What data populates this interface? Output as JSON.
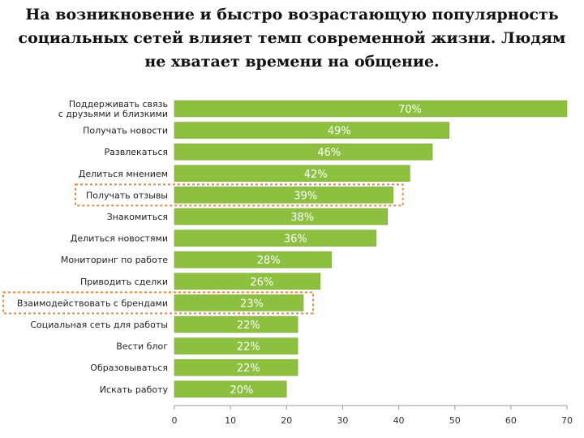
{
  "title": {
    "line1": "На возникновение и быстро возрастающую популярность",
    "line2": "социальных  сетей влияет темп современной жизни. Людям",
    "line3": "не хватает времени на общение."
  },
  "colors": {
    "bar": "#8DC03F",
    "bar_stroke": "#6f9c2c",
    "highlight": "#E8883A",
    "axis": "#999999"
  },
  "chart_data": {
    "type": "bar",
    "orientation": "horizontal",
    "categories": [
      "Поддерживать связь с друзьями и близкими",
      "Получать новости",
      "Развлекаться",
      "Делиться мнением",
      "Получать отзывы",
      "Знакомиться",
      "Делиться новостями",
      "Мониторинг по работе",
      "Приводить сделки",
      "Взаимодействовать с брендами",
      "Социальная сеть для работы",
      "Вести блог",
      "Образовываться",
      "Искать работу"
    ],
    "values": [
      70,
      49,
      46,
      42,
      39,
      38,
      36,
      28,
      26,
      23,
      22,
      22,
      22,
      20
    ],
    "value_labels": [
      "70%",
      "49%",
      "46%",
      "42%",
      "39%",
      "38%",
      "36%",
      "28%",
      "26%",
      "23%",
      "22%",
      "22%",
      "22%",
      "20%"
    ],
    "highlighted": [
      "Получать отзывы",
      "Взаимодействовать с брендами"
    ],
    "xticks": [
      0,
      10,
      20,
      30,
      40,
      50,
      60,
      70
    ],
    "xlim": [
      0,
      70
    ],
    "title": "",
    "xlabel": "",
    "ylabel": ""
  }
}
